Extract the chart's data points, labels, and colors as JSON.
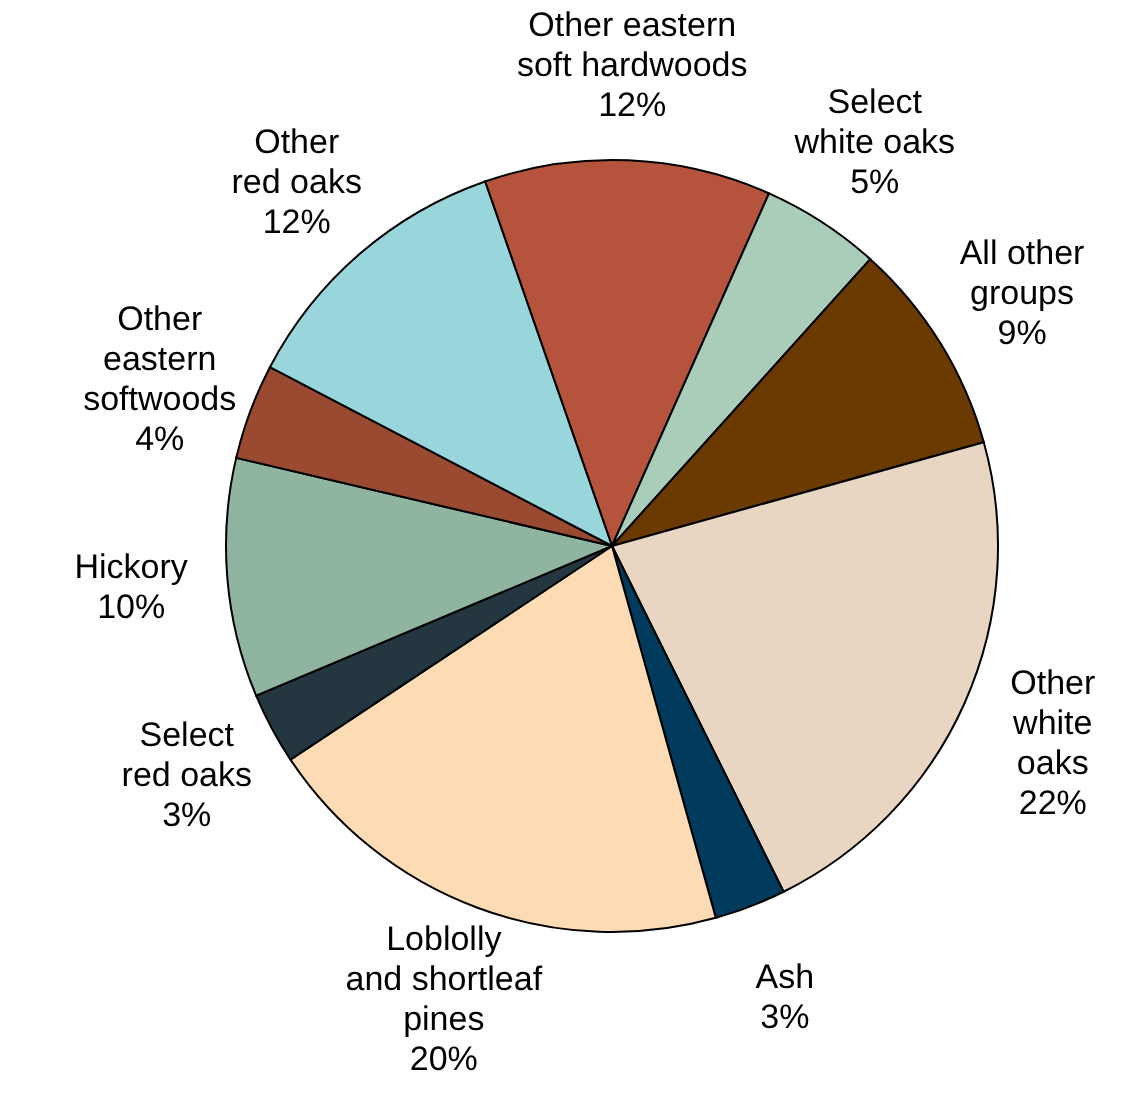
{
  "chart_data": {
    "type": "pie",
    "categories": [
      "Other eastern\nsoft hardwoods",
      "Select\nwhite oaks",
      "All other\ngroups",
      "Other\nwhite\noaks",
      "Ash",
      "Loblolly\nand shortleaf\npines",
      "Select\nred oaks",
      "Hickory",
      "Other\neastern\nsoftwoods",
      "Other\nred oaks"
    ],
    "values": [
      12,
      5,
      9,
      22,
      3,
      20,
      3,
      10,
      4,
      12
    ],
    "value_labels": [
      "12%",
      "5%",
      "9%",
      "22%",
      "3%",
      "20%",
      "3%",
      "10%",
      "4%",
      "12%"
    ],
    "colors": [
      "#b5533c",
      "#a9cdb8",
      "#6b3a00",
      "#e8d6c3",
      "#003a5c",
      "#fddcb5",
      "#243640",
      "#8fb5a0",
      "#9a4a30",
      "#98d6dc"
    ]
  }
}
